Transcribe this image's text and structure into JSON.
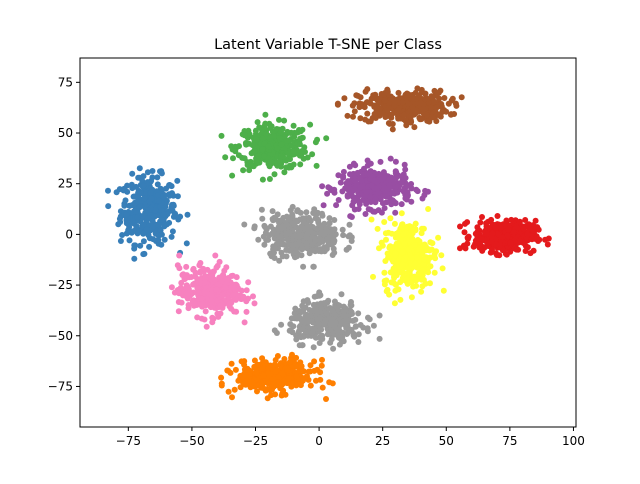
{
  "chart_data": {
    "type": "scatter",
    "title": "Latent Variable T-SNE per Class",
    "xlabel": "",
    "ylabel": "",
    "xlim": [
      -94,
      101
    ],
    "ylim": [
      -95,
      87
    ],
    "xticks": [
      -75,
      -50,
      -25,
      0,
      25,
      50,
      75,
      100
    ],
    "yticks": [
      -75,
      -50,
      -25,
      0,
      25,
      50,
      75
    ],
    "grid": false,
    "legend": "none",
    "series": [
      {
        "color": "#377eb8",
        "center": [
          -67,
          12
        ],
        "spread": [
          10,
          15
        ]
      },
      {
        "color": "#4daf4a",
        "center": [
          -18,
          43
        ],
        "spread": [
          13,
          10
        ]
      },
      {
        "color": "#a65628",
        "center": [
          33,
          63
        ],
        "spread": [
          16,
          7
        ]
      },
      {
        "color": "#984ea3",
        "center": [
          22,
          23
        ],
        "spread": [
          13,
          9
        ]
      },
      {
        "color": "#e41a1c",
        "center": [
          73,
          -1
        ],
        "spread": [
          11,
          7
        ]
      },
      {
        "color": "#ffff33",
        "center": [
          35,
          -10
        ],
        "spread": [
          9,
          15
        ]
      },
      {
        "color": "#f781bf",
        "center": [
          -43,
          -28
        ],
        "spread": [
          11,
          11
        ]
      },
      {
        "color": "#999999",
        "center": [
          -7,
          0
        ],
        "spread": [
          14,
          10
        ]
      },
      {
        "color": "#999999",
        "center": [
          3,
          -43
        ],
        "spread": [
          13,
          9
        ]
      },
      {
        "color": "#ff7f00",
        "center": [
          -17,
          -70
        ],
        "spread": [
          14,
          7
        ]
      }
    ]
  }
}
